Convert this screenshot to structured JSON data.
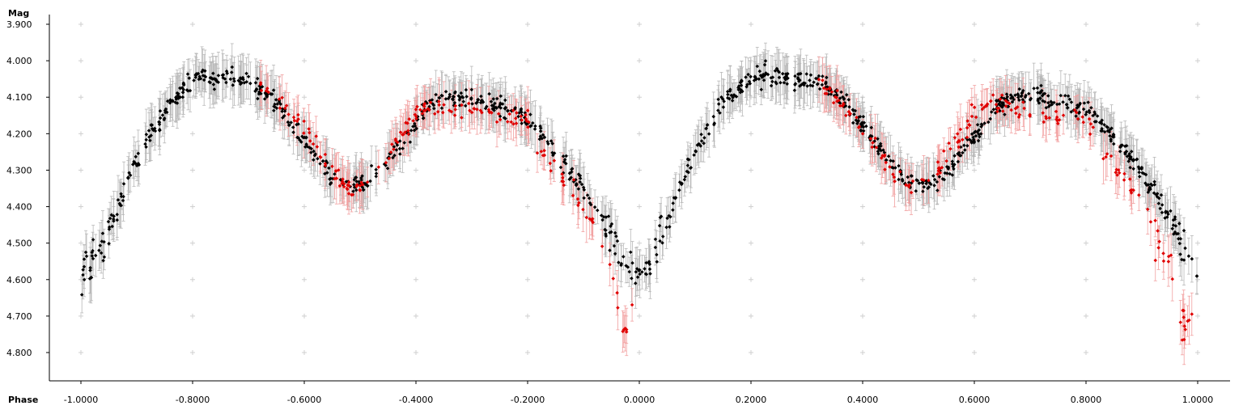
{
  "chart_data": {
    "type": "scatter",
    "title": "",
    "xlabel": "Phase",
    "ylabel": "Mag",
    "xlim": [
      -1.055,
      1.055
    ],
    "ylim": [
      4.875,
      3.875
    ],
    "y_inverted": true,
    "x_ticks": [
      "-1.0000",
      "-0.8000",
      "-0.6000",
      "-0.4000",
      "-0.2000",
      "0.0000",
      "0.2000",
      "0.4000",
      "0.6000",
      "0.8000",
      "1.0000"
    ],
    "y_ticks": [
      "3.900",
      "4.000",
      "4.100",
      "4.200",
      "4.300",
      "4.400",
      "4.500",
      "4.600",
      "4.700",
      "4.800"
    ],
    "grid": "plus-markers",
    "typical_error_bar": 0.05,
    "colors": {
      "black_series": "#000000",
      "red_series": "#e00000",
      "black_error": "#b8b8b8",
      "red_error": "#f2a0a0",
      "grid_marker": "#cfcfcf"
    },
    "series": [
      {
        "color": "black",
        "description_points": [
          [
            -1.0,
            4.6
          ],
          [
            -0.98,
            4.56
          ],
          [
            -0.96,
            4.5
          ],
          [
            -0.94,
            4.43
          ],
          [
            -0.92,
            4.35
          ],
          [
            -0.9,
            4.27
          ],
          [
            -0.88,
            4.21
          ],
          [
            -0.86,
            4.17
          ],
          [
            -0.84,
            4.12
          ],
          [
            -0.82,
            4.08
          ],
          [
            -0.8,
            4.05
          ],
          [
            -0.78,
            4.04
          ],
          [
            -0.76,
            4.05
          ],
          [
            -0.74,
            4.05
          ],
          [
            -0.72,
            4.05
          ],
          [
            -0.7,
            4.06
          ],
          [
            -0.68,
            4.08
          ],
          [
            -0.66,
            4.1
          ],
          [
            -0.64,
            4.14
          ],
          [
            -0.62,
            4.18
          ],
          [
            -0.6,
            4.22
          ],
          [
            -0.58,
            4.26
          ],
          [
            -0.56,
            4.3
          ],
          [
            -0.54,
            4.33
          ],
          [
            -0.52,
            4.34
          ],
          [
            -0.5,
            4.34
          ],
          [
            -0.48,
            4.32
          ],
          [
            -0.46,
            4.29
          ],
          [
            -0.44,
            4.25
          ],
          [
            -0.42,
            4.21
          ],
          [
            -0.4,
            4.17
          ],
          [
            -0.38,
            4.13
          ],
          [
            -0.36,
            4.11
          ],
          [
            -0.34,
            4.1
          ],
          [
            -0.32,
            4.1
          ],
          [
            -0.3,
            4.1
          ],
          [
            -0.28,
            4.11
          ],
          [
            -0.26,
            4.12
          ],
          [
            -0.24,
            4.13
          ],
          [
            -0.22,
            4.14
          ],
          [
            -0.2,
            4.16
          ],
          [
            -0.18,
            4.19
          ],
          [
            -0.16,
            4.23
          ],
          [
            -0.14,
            4.27
          ],
          [
            -0.12,
            4.31
          ],
          [
            -0.1,
            4.35
          ],
          [
            -0.08,
            4.4
          ],
          [
            -0.06,
            4.46
          ],
          [
            -0.04,
            4.52
          ],
          [
            -0.02,
            4.57
          ],
          [
            0.0,
            4.59
          ],
          [
            0.02,
            4.56
          ],
          [
            0.04,
            4.48
          ],
          [
            0.06,
            4.4
          ],
          [
            0.08,
            4.32
          ],
          [
            0.1,
            4.25
          ],
          [
            0.12,
            4.19
          ],
          [
            0.14,
            4.14
          ],
          [
            0.16,
            4.1
          ],
          [
            0.18,
            4.07
          ],
          [
            0.2,
            4.05
          ],
          [
            0.22,
            4.04
          ],
          [
            0.24,
            4.04
          ],
          [
            0.26,
            4.05
          ],
          [
            0.28,
            4.05
          ],
          [
            0.3,
            4.05
          ],
          [
            0.32,
            4.06
          ],
          [
            0.34,
            4.08
          ],
          [
            0.36,
            4.1
          ],
          [
            0.38,
            4.14
          ],
          [
            0.4,
            4.18
          ],
          [
            0.42,
            4.22
          ],
          [
            0.44,
            4.26
          ],
          [
            0.46,
            4.3
          ],
          [
            0.48,
            4.33
          ],
          [
            0.5,
            4.34
          ],
          [
            0.52,
            4.34
          ],
          [
            0.54,
            4.32
          ],
          [
            0.56,
            4.29
          ],
          [
            0.58,
            4.25
          ],
          [
            0.6,
            4.21
          ],
          [
            0.62,
            4.17
          ],
          [
            0.64,
            4.13
          ],
          [
            0.66,
            4.11
          ],
          [
            0.68,
            4.1
          ],
          [
            0.7,
            4.1
          ],
          [
            0.72,
            4.1
          ],
          [
            0.74,
            4.11
          ],
          [
            0.76,
            4.12
          ],
          [
            0.78,
            4.13
          ],
          [
            0.8,
            4.14
          ],
          [
            0.82,
            4.16
          ],
          [
            0.84,
            4.19
          ],
          [
            0.86,
            4.23
          ],
          [
            0.88,
            4.27
          ],
          [
            0.9,
            4.31
          ],
          [
            0.92,
            4.35
          ],
          [
            0.94,
            4.4
          ],
          [
            0.96,
            4.46
          ],
          [
            0.98,
            4.52
          ],
          [
            1.0,
            4.57
          ]
        ]
      },
      {
        "color": "red",
        "description_points": [
          [
            -0.68,
            4.06
          ],
          [
            -0.64,
            4.11
          ],
          [
            -0.6,
            4.19
          ],
          [
            -0.57,
            4.25
          ],
          [
            -0.54,
            4.32
          ],
          [
            -0.52,
            4.35
          ],
          [
            -0.5,
            4.34
          ],
          [
            -0.48,
            4.32
          ],
          [
            -0.46,
            4.28
          ],
          [
            -0.44,
            4.24
          ],
          [
            -0.42,
            4.2
          ],
          [
            -0.4,
            4.15
          ],
          [
            -0.38,
            4.12
          ],
          [
            -0.36,
            4.12
          ],
          [
            -0.34,
            4.13
          ],
          [
            -0.32,
            4.14
          ],
          [
            -0.3,
            4.14
          ],
          [
            -0.28,
            4.14
          ],
          [
            -0.26,
            4.15
          ],
          [
            -0.24,
            4.16
          ],
          [
            -0.22,
            4.15
          ],
          [
            -0.2,
            4.17
          ],
          [
            -0.18,
            4.22
          ],
          [
            -0.16,
            4.28
          ],
          [
            -0.14,
            4.31
          ],
          [
            -0.12,
            4.35
          ],
          [
            -0.1,
            4.39
          ],
          [
            -0.08,
            4.45
          ],
          [
            -0.06,
            4.53
          ],
          [
            -0.04,
            4.63
          ],
          [
            -0.03,
            4.75
          ],
          [
            -0.01,
            4.68
          ],
          [
            0.32,
            4.06
          ],
          [
            0.36,
            4.11
          ],
          [
            0.4,
            4.19
          ],
          [
            0.43,
            4.25
          ],
          [
            0.46,
            4.32
          ],
          [
            0.48,
            4.35
          ],
          [
            0.5,
            4.34
          ],
          [
            0.52,
            4.32
          ],
          [
            0.54,
            4.28
          ],
          [
            0.56,
            4.24
          ],
          [
            0.58,
            4.2
          ],
          [
            0.6,
            4.15
          ],
          [
            0.62,
            4.12
          ],
          [
            0.64,
            4.12
          ],
          [
            0.66,
            4.13
          ],
          [
            0.68,
            4.14
          ],
          [
            0.7,
            4.14
          ],
          [
            0.72,
            4.14
          ],
          [
            0.74,
            4.15
          ],
          [
            0.76,
            4.16
          ],
          [
            0.78,
            4.15
          ],
          [
            0.8,
            4.17
          ],
          [
            0.82,
            4.22
          ],
          [
            0.84,
            4.28
          ],
          [
            0.86,
            4.31
          ],
          [
            0.88,
            4.35
          ],
          [
            0.9,
            4.39
          ],
          [
            0.92,
            4.45
          ],
          [
            0.94,
            4.53
          ],
          [
            0.96,
            4.63
          ],
          [
            0.97,
            4.75
          ],
          [
            0.99,
            4.68
          ]
        ]
      }
    ]
  }
}
